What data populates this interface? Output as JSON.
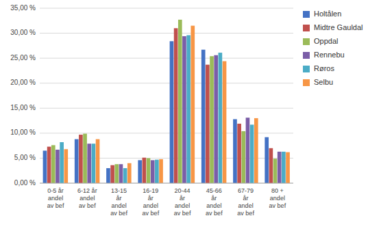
{
  "chart_data": {
    "type": "bar",
    "categories": [
      "0-5 år\nandel\nav bef",
      "6-12 år\nandel\nav bef",
      "13-15\når\nandel\nav bef",
      "16-19\når\nandel\nav bef",
      "20-44\når\nandel\nav bef",
      "45-66\når\nandel\nav bef",
      "67-79\når\nandel\nav bef",
      "80 +\nandel\nav bef"
    ],
    "series": [
      {
        "name": "Holtålen",
        "color": "#4472c4",
        "values": [
          0.065,
          0.088,
          0.03,
          0.046,
          0.284,
          0.267,
          0.128,
          0.092
        ]
      },
      {
        "name": "Midtre Gauldal",
        "color": "#c0504d",
        "values": [
          0.073,
          0.097,
          0.036,
          0.051,
          0.31,
          0.237,
          0.119,
          0.07
        ]
      },
      {
        "name": "Oppdal",
        "color": "#9bbb59",
        "values": [
          0.076,
          0.099,
          0.038,
          0.05,
          0.327,
          0.254,
          0.104,
          0.049
        ]
      },
      {
        "name": "Rennebu",
        "color": "#7b5ea7",
        "values": [
          0.067,
          0.079,
          0.038,
          0.046,
          0.294,
          0.256,
          0.131,
          0.063
        ]
      },
      {
        "name": "Røros",
        "color": "#4bacc6",
        "values": [
          0.082,
          0.079,
          0.03,
          0.047,
          0.296,
          0.261,
          0.117,
          0.063
        ]
      },
      {
        "name": "Selbu",
        "color": "#f79646",
        "values": [
          0.068,
          0.088,
          0.04,
          0.048,
          0.315,
          0.244,
          0.13,
          0.062
        ]
      }
    ],
    "ylim": [
      0,
      0.35
    ],
    "yticks": [
      {
        "value": 0.0,
        "label": "0,00 %"
      },
      {
        "value": 0.05,
        "label": "5,00 %"
      },
      {
        "value": 0.1,
        "label": "10,00 %"
      },
      {
        "value": 0.15,
        "label": "15,00 %"
      },
      {
        "value": 0.2,
        "label": "20,00 %"
      },
      {
        "value": 0.25,
        "label": "25,00 %"
      },
      {
        "value": 0.3,
        "label": "30,00 %"
      },
      {
        "value": 0.35,
        "label": "35,00 %"
      }
    ],
    "grid": true,
    "legend": "upper right"
  }
}
